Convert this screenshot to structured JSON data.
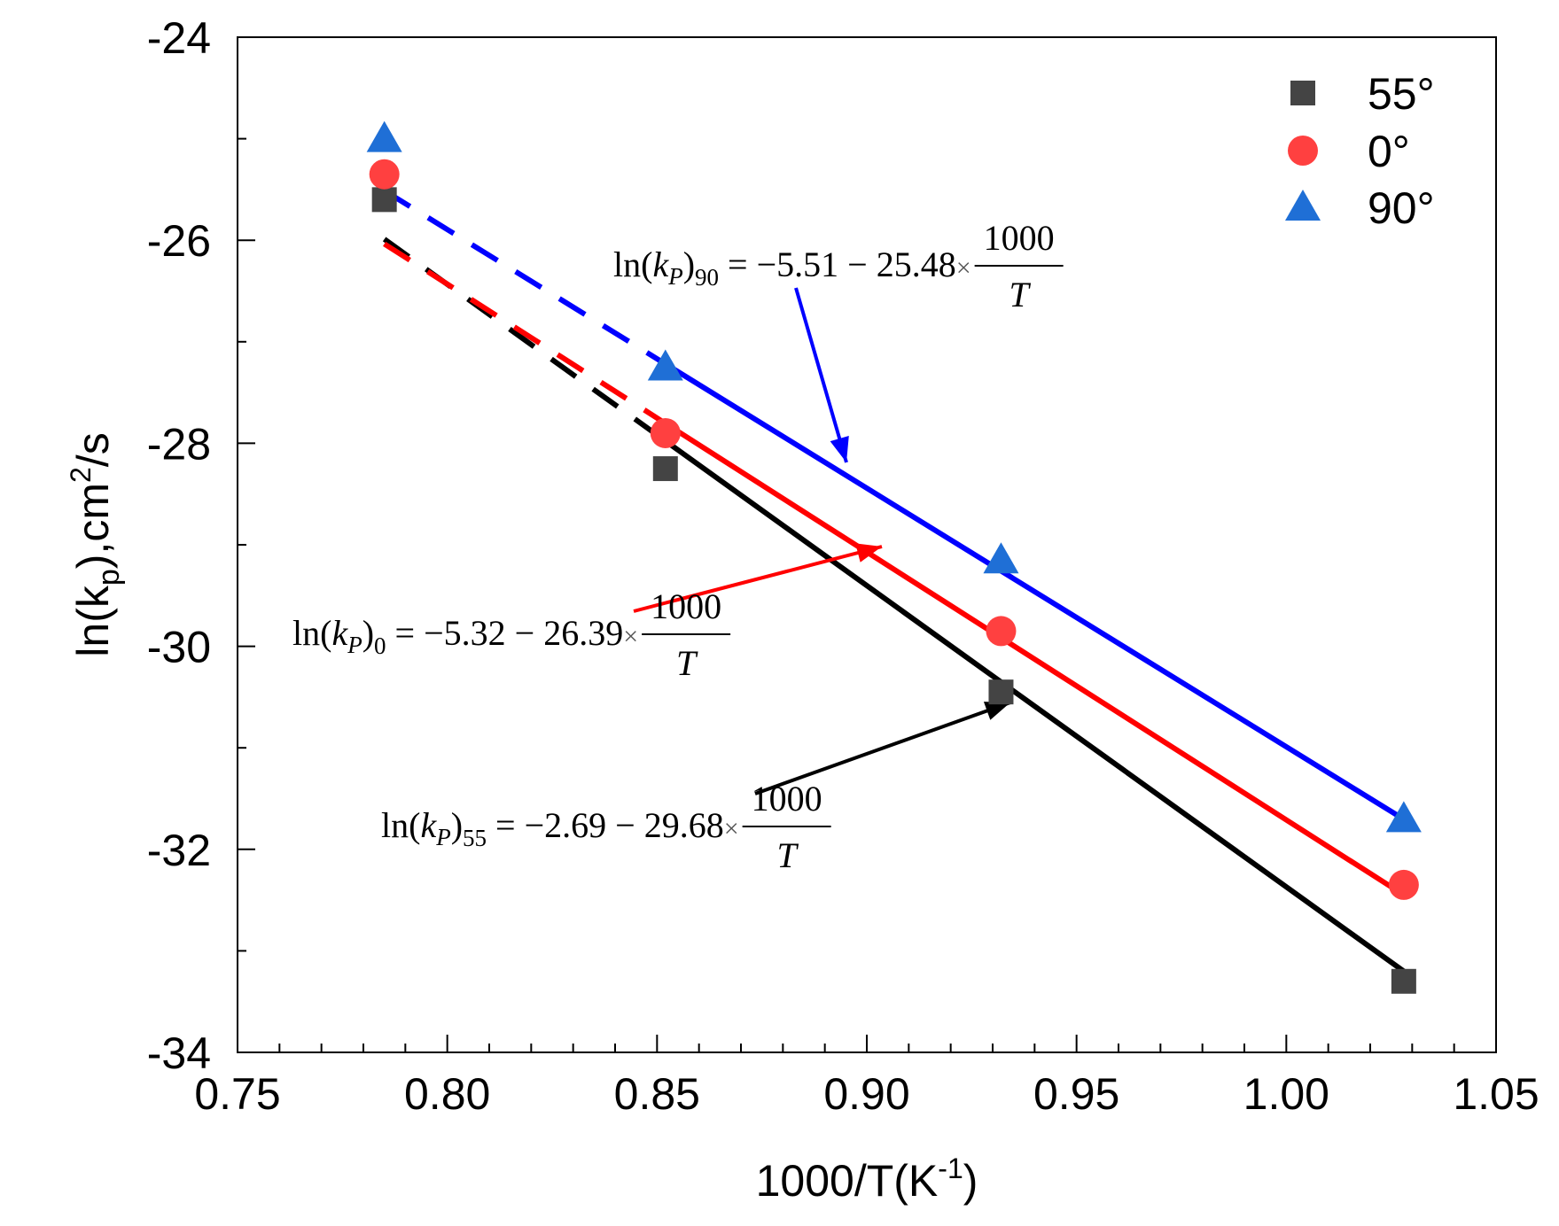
{
  "chart_data": {
    "type": "scatter",
    "title": "",
    "xlabel": {
      "main": "1000/T(K",
      "sup": "-1",
      "end": ")"
    },
    "ylabel": {
      "main": "ln(k",
      "sub": "p",
      "mid": "),cm",
      "sup": "2",
      "end": "/s"
    },
    "xlim": [
      0.75,
      1.05
    ],
    "ylim": [
      -34,
      -24
    ],
    "x_ticks": [
      0.75,
      0.8,
      0.85,
      0.9,
      0.95,
      1.0,
      1.05
    ],
    "x_tick_labels": [
      "0.75",
      "0.80",
      "0.85",
      "0.90",
      "0.95",
      "1.00",
      "1.05"
    ],
    "y_ticks": [
      -24,
      -26,
      -28,
      -30,
      -32,
      -34
    ],
    "y_tick_labels": [
      "-24",
      "-26",
      "-28",
      "-30",
      "-32",
      "-34"
    ],
    "grid": false,
    "legend_position": "top-right",
    "series": [
      {
        "name": "55°",
        "marker": "square",
        "color": "#444444",
        "line_color": "#000000",
        "x": [
          0.785,
          0.852,
          0.932,
          1.028
        ],
        "y": [
          -25.6,
          -28.25,
          -30.45,
          -33.3
        ],
        "fit": {
          "intercept": -2.69,
          "slope": -29.68
        },
        "fit_dashed_range": [
          0.785,
          0.852
        ],
        "fit_solid_range": [
          0.852,
          1.028
        ],
        "equation": {
          "lhs": "ln(",
          "k": "k",
          "k_sub": "P",
          "close": ")",
          "sub": "55",
          "rhs": " = −2.69 − 29.68",
          "times": "×",
          "num": "1000",
          "den": "T"
        }
      },
      {
        "name": "0°",
        "marker": "circle",
        "color": "#ff4040",
        "line_color": "#ff0000",
        "x": [
          0.785,
          0.852,
          0.932,
          1.028
        ],
        "y": [
          -25.35,
          -27.9,
          -29.85,
          -32.35
        ],
        "fit": {
          "intercept": -5.32,
          "slope": -26.39
        },
        "fit_dashed_range": [
          0.785,
          0.852
        ],
        "fit_solid_range": [
          0.852,
          1.028
        ],
        "equation": {
          "lhs": "ln(",
          "k": "k",
          "k_sub": "P",
          "close": ")",
          "sub": "0",
          "rhs": " = −5.32 − 26.39",
          "times": "×",
          "num": "1000",
          "den": "T"
        }
      },
      {
        "name": "90°",
        "marker": "triangle",
        "color": "#1f6fd6",
        "line_color": "#0000ff",
        "x": [
          0.785,
          0.852,
          0.932,
          1.028
        ],
        "y": [
          -25.0,
          -27.25,
          -29.15,
          -31.7
        ],
        "fit": {
          "intercept": -5.51,
          "slope": -25.48
        },
        "fit_dashed_range": [
          0.785,
          0.852
        ],
        "fit_solid_range": [
          0.852,
          1.028
        ],
        "equation": {
          "lhs": "ln(",
          "k": "k",
          "k_sub": "P",
          "close": ")",
          "sub": "90",
          "rhs": " = −5.51 − 25.48",
          "times": "×",
          "num": "1000",
          "den": "T"
        }
      }
    ]
  }
}
